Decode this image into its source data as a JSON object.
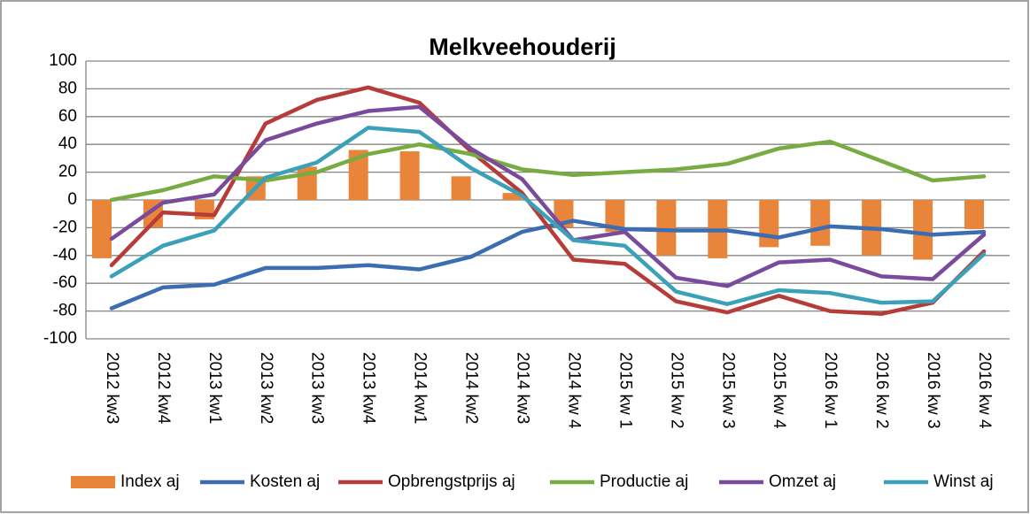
{
  "chart_data": {
    "type": "combo",
    "title": "Melkveehouderij",
    "categories": [
      "2012 kw3",
      "2012 kw4",
      "2013 kw1",
      "2013 kw2",
      "2013 kw3",
      "2013 kw4",
      "2014 kw1",
      "2014 kw2",
      "2014 kw3",
      "2014 kw 4",
      "2015 kw 1",
      "2015 kw 2",
      "2015 kw 3",
      "2015 kw 4",
      "2016 kw 1",
      "2016 kw 2",
      "2016 kw 3",
      "2016 kw 4"
    ],
    "series": [
      {
        "name": "Index aj",
        "type": "bar",
        "color": "#e8853a",
        "values": [
          -42,
          -20,
          -14,
          17,
          24,
          36,
          35,
          17,
          5,
          -20,
          -23,
          -40,
          -42,
          -34,
          -33,
          -40,
          -43,
          -21
        ]
      },
      {
        "name": "Kosten aj",
        "type": "line",
        "color": "#3b6db3",
        "values": [
          -78,
          -63,
          -61,
          -49,
          -49,
          -47,
          -50,
          -41,
          -23,
          -15,
          -21,
          -22,
          -22,
          -27,
          -19,
          -21,
          -25,
          -23
        ]
      },
      {
        "name": "Opbrengstprijs aj",
        "type": "line",
        "color": "#b63c3a",
        "values": [
          -47,
          -9,
          -11,
          55,
          72,
          81,
          70,
          35,
          5,
          -43,
          -46,
          -73,
          -81,
          -69,
          -80,
          -82,
          -74,
          -37
        ]
      },
      {
        "name": "Productie aj",
        "type": "line",
        "color": "#78ab42",
        "values": [
          0,
          7,
          17,
          14,
          20,
          33,
          40,
          33,
          22,
          18,
          20,
          22,
          26,
          37,
          42,
          28,
          14,
          17
        ]
      },
      {
        "name": "Omzet aj",
        "type": "line",
        "color": "#7a4b9c",
        "values": [
          -28,
          -2,
          4,
          43,
          55,
          64,
          67,
          37,
          15,
          -29,
          -23,
          -56,
          -62,
          -45,
          -43,
          -55,
          -57,
          -25
        ]
      },
      {
        "name": "Winst aj",
        "type": "line",
        "color": "#3aa1b9",
        "values": [
          -55,
          -33,
          -22,
          16,
          27,
          52,
          49,
          23,
          3,
          -29,
          -33,
          -66,
          -75,
          -65,
          -67,
          -74,
          -73,
          -39
        ]
      }
    ],
    "ylim": [
      -100,
      100
    ],
    "yticks": [
      -100,
      -80,
      -60,
      -40,
      -20,
      0,
      20,
      40,
      60,
      80,
      100
    ],
    "grid": true,
    "legend": "bottom"
  }
}
